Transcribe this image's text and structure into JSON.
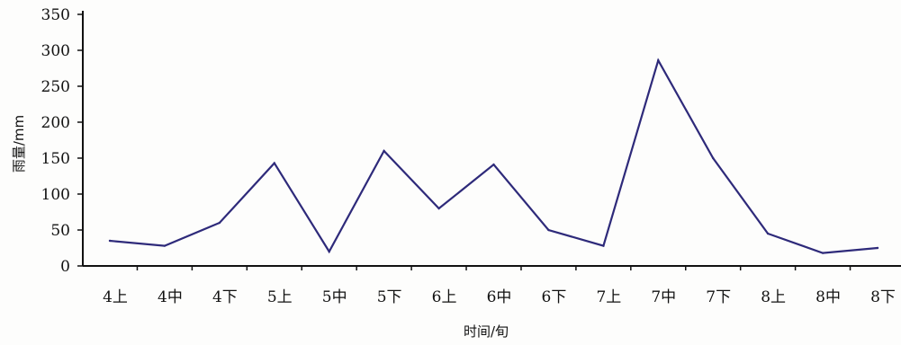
{
  "chart_data": {
    "type": "line",
    "title": "",
    "xlabel": "时间/旬",
    "ylabel": "雨量/mm",
    "categories": [
      "4上",
      "4中",
      "4下",
      "5上",
      "5中",
      "5下",
      "6上",
      "6中",
      "6下",
      "7上",
      "7中",
      "7下",
      "8上",
      "8中",
      "8下"
    ],
    "series": [
      {
        "values": [
          35,
          28,
          60,
          143,
          20,
          160,
          80,
          141,
          50,
          28,
          286,
          150,
          45,
          18,
          25
        ],
        "color": "#2e2a7a"
      }
    ],
    "yticks": [
      0,
      50,
      100,
      150,
      200,
      250,
      300,
      350
    ],
    "ylim": [
      0,
      350
    ],
    "grid": false,
    "legend": "none"
  }
}
